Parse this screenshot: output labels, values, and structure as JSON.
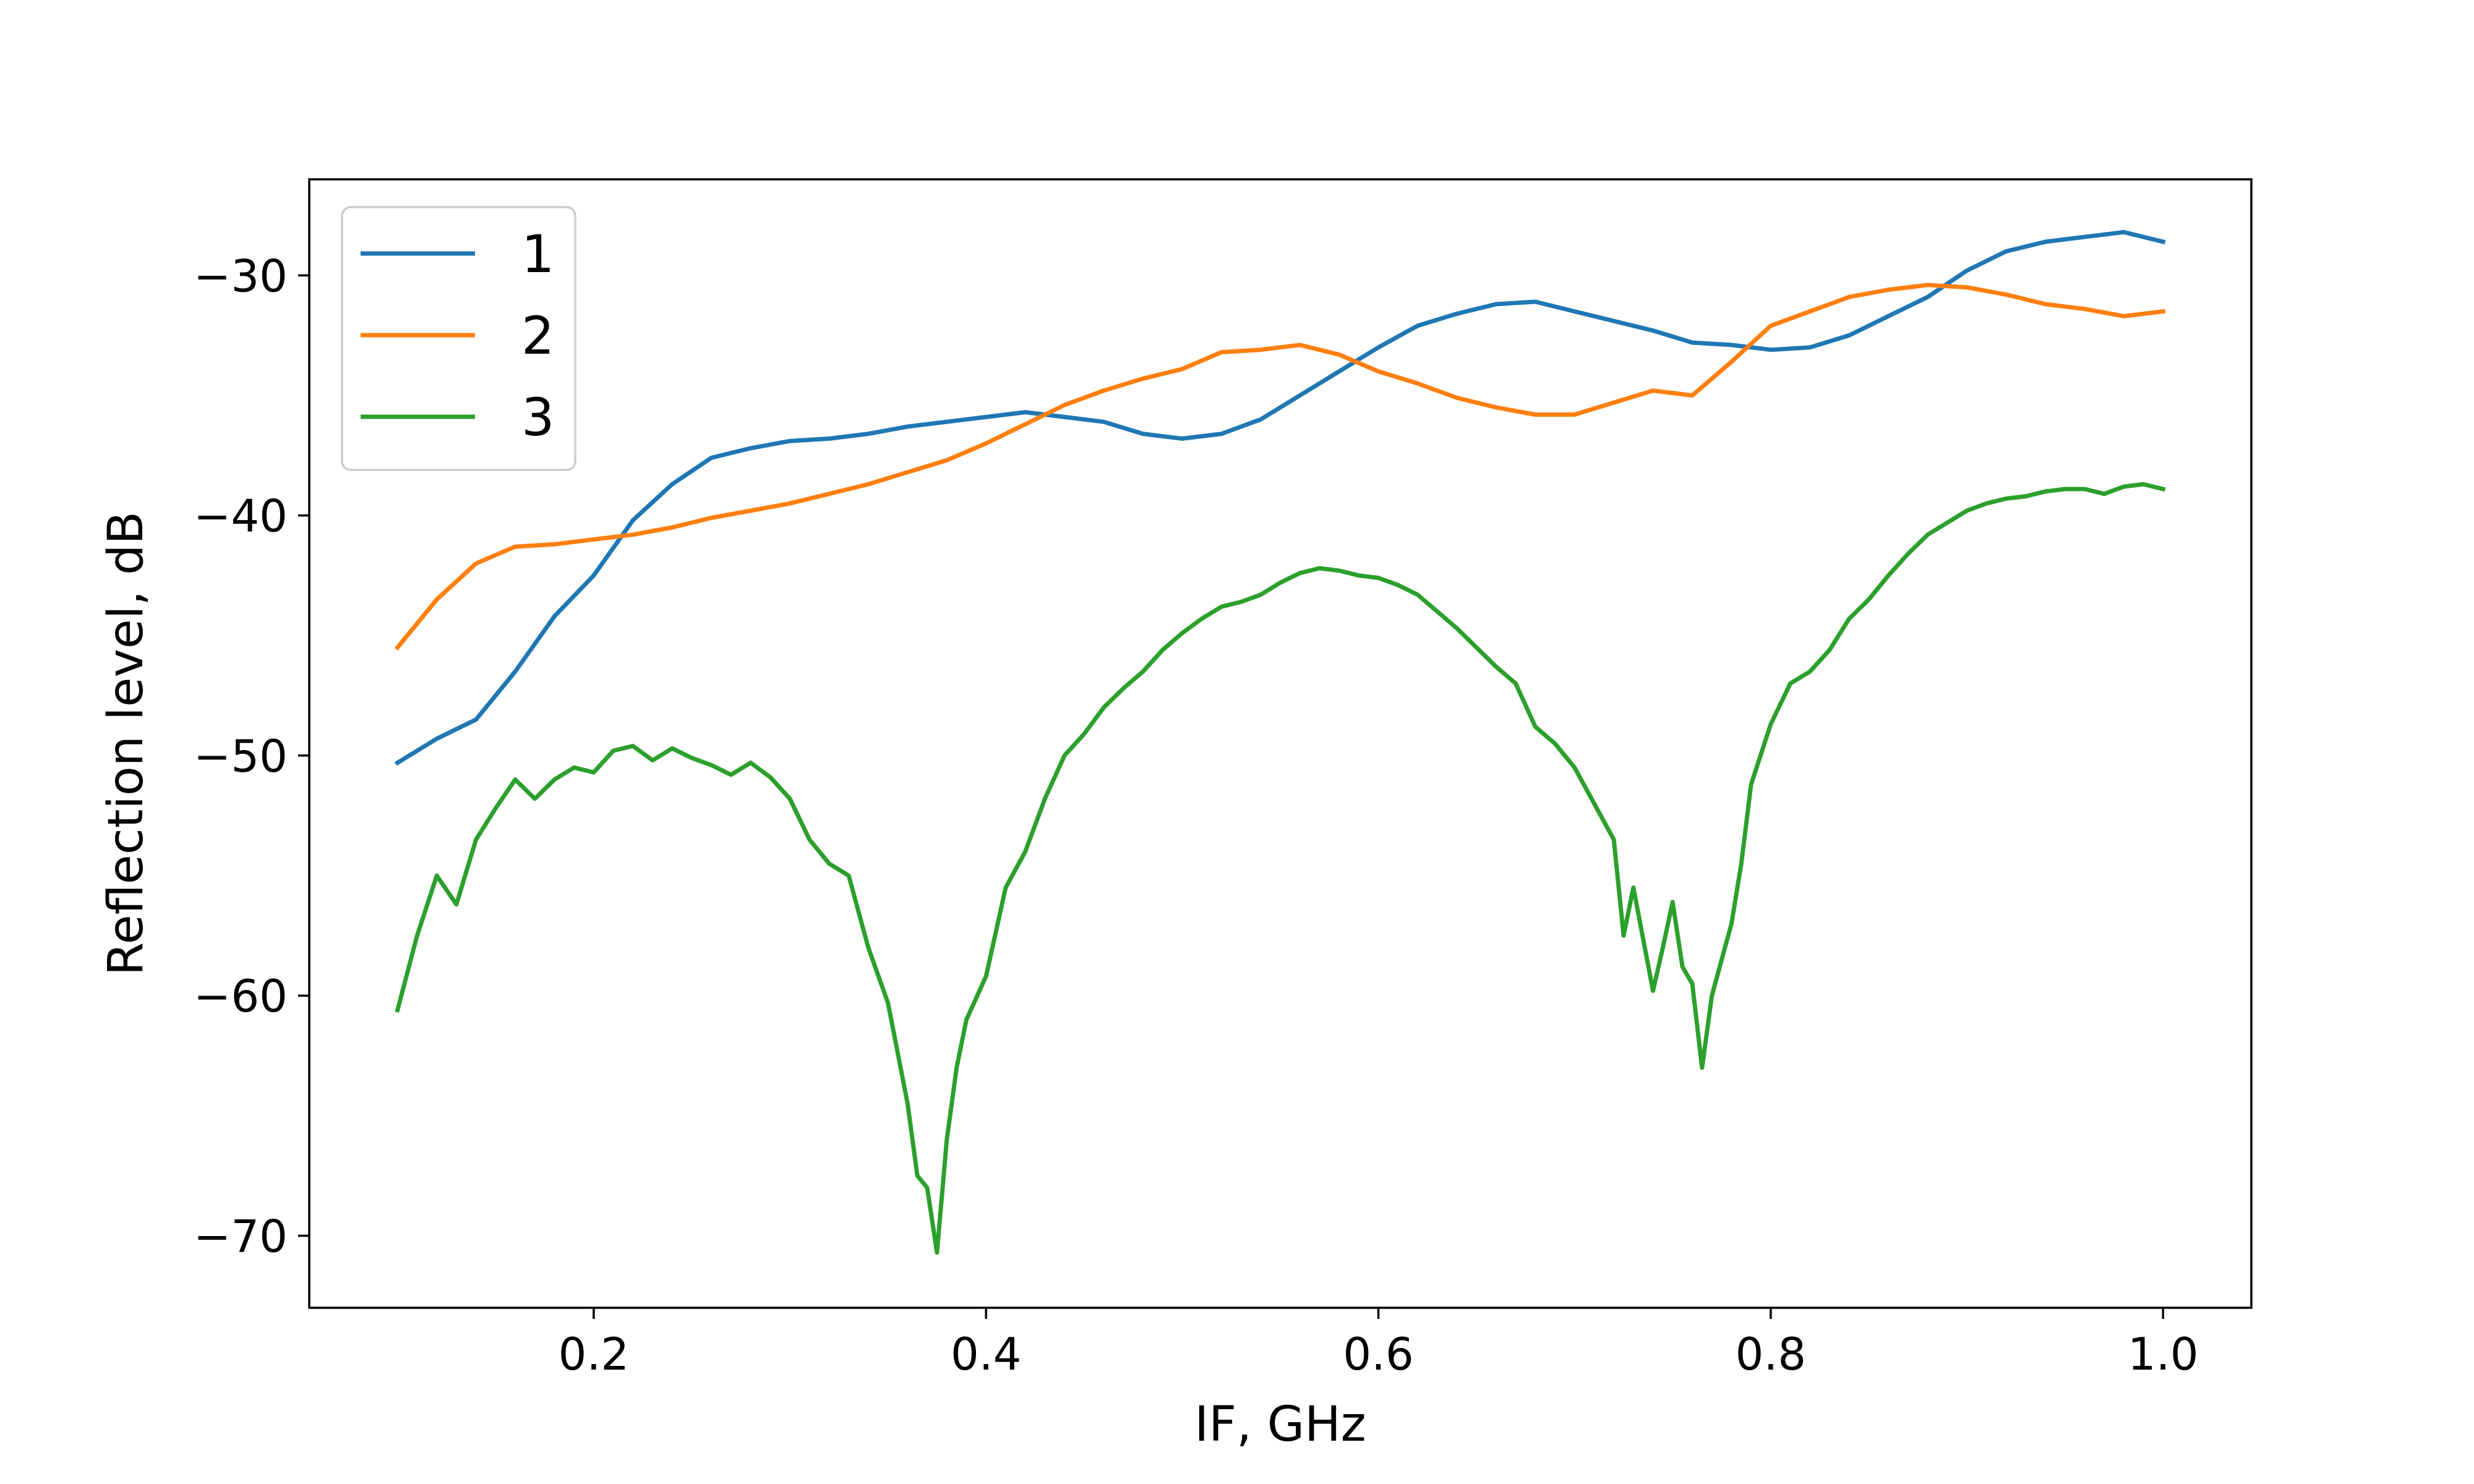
{
  "chart_data": {
    "type": "line",
    "title": "",
    "xlabel": "IF, GHz",
    "ylabel": "Reflection level, dB",
    "xlim": [
      0.055,
      1.045
    ],
    "ylim": [
      -73,
      -26
    ],
    "xticks": [
      {
        "value": 0.2,
        "label": "0.2"
      },
      {
        "value": 0.4,
        "label": "0.4"
      },
      {
        "value": 0.6,
        "label": "0.6"
      },
      {
        "value": 0.8,
        "label": "0.8"
      },
      {
        "value": 1.0,
        "label": "1.0"
      }
    ],
    "yticks": [
      {
        "value": -30,
        "label": "−30"
      },
      {
        "value": -40,
        "label": "−40"
      },
      {
        "value": -50,
        "label": "−50"
      },
      {
        "value": -60,
        "label": "−60"
      },
      {
        "value": -70,
        "label": "−70"
      }
    ],
    "grid": false,
    "legend_position": "top-left",
    "series": [
      {
        "name": "1",
        "color": "#1f77b4",
        "x": [
          0.1,
          0.12,
          0.14,
          0.16,
          0.18,
          0.2,
          0.22,
          0.24,
          0.26,
          0.28,
          0.3,
          0.32,
          0.34,
          0.36,
          0.38,
          0.4,
          0.42,
          0.44,
          0.46,
          0.48,
          0.5,
          0.52,
          0.54,
          0.56,
          0.58,
          0.6,
          0.62,
          0.64,
          0.66,
          0.68,
          0.7,
          0.72,
          0.74,
          0.76,
          0.78,
          0.8,
          0.82,
          0.84,
          0.86,
          0.88,
          0.9,
          0.92,
          0.94,
          0.96,
          0.98,
          1.0
        ],
        "y": [
          -50.3,
          -49.3,
          -48.5,
          -46.5,
          -44.2,
          -42.5,
          -40.2,
          -38.7,
          -37.6,
          -37.2,
          -36.9,
          -36.8,
          -36.6,
          -36.3,
          -36.1,
          -35.9,
          -35.7,
          -35.9,
          -36.1,
          -36.6,
          -36.8,
          -36.6,
          -36.0,
          -35.0,
          -34.0,
          -33.0,
          -32.1,
          -31.6,
          -31.2,
          -31.1,
          -31.5,
          -31.9,
          -32.3,
          -32.8,
          -32.9,
          -33.1,
          -33.0,
          -32.5,
          -31.7,
          -30.9,
          -29.8,
          -29.0,
          -28.6,
          -28.4,
          -28.2,
          -28.6
        ]
      },
      {
        "name": "2",
        "color": "#ff7f0e",
        "x": [
          0.1,
          0.12,
          0.14,
          0.16,
          0.18,
          0.2,
          0.22,
          0.24,
          0.26,
          0.28,
          0.3,
          0.32,
          0.34,
          0.36,
          0.38,
          0.4,
          0.42,
          0.44,
          0.46,
          0.48,
          0.5,
          0.52,
          0.54,
          0.56,
          0.58,
          0.6,
          0.62,
          0.64,
          0.66,
          0.68,
          0.7,
          0.72,
          0.74,
          0.76,
          0.78,
          0.8,
          0.82,
          0.84,
          0.86,
          0.88,
          0.9,
          0.92,
          0.94,
          0.96,
          0.98,
          1.0
        ],
        "y": [
          -45.5,
          -43.5,
          -42.0,
          -41.3,
          -41.2,
          -41.0,
          -40.8,
          -40.5,
          -40.1,
          -39.8,
          -39.5,
          -39.1,
          -38.7,
          -38.2,
          -37.7,
          -37.0,
          -36.2,
          -35.4,
          -34.8,
          -34.3,
          -33.9,
          -33.2,
          -33.1,
          -32.9,
          -33.3,
          -34.0,
          -34.5,
          -35.1,
          -35.5,
          -35.8,
          -35.8,
          -35.3,
          -34.8,
          -35.0,
          -33.6,
          -32.1,
          -31.5,
          -30.9,
          -30.6,
          -30.4,
          -30.5,
          -30.8,
          -31.2,
          -31.4,
          -31.7,
          -31.5
        ]
      },
      {
        "name": "3",
        "color": "#2ca02c",
        "x": [
          0.1,
          0.11,
          0.12,
          0.13,
          0.14,
          0.15,
          0.16,
          0.17,
          0.18,
          0.19,
          0.2,
          0.21,
          0.22,
          0.23,
          0.24,
          0.25,
          0.26,
          0.27,
          0.28,
          0.29,
          0.3,
          0.31,
          0.32,
          0.33,
          0.34,
          0.35,
          0.36,
          0.365,
          0.37,
          0.375,
          0.38,
          0.385,
          0.39,
          0.4,
          0.41,
          0.42,
          0.43,
          0.44,
          0.45,
          0.46,
          0.47,
          0.48,
          0.49,
          0.5,
          0.51,
          0.52,
          0.53,
          0.54,
          0.55,
          0.56,
          0.57,
          0.58,
          0.59,
          0.6,
          0.61,
          0.62,
          0.63,
          0.64,
          0.65,
          0.66,
          0.67,
          0.68,
          0.69,
          0.7,
          0.71,
          0.72,
          0.725,
          0.73,
          0.74,
          0.745,
          0.75,
          0.755,
          0.76,
          0.765,
          0.77,
          0.78,
          0.785,
          0.79,
          0.8,
          0.81,
          0.82,
          0.83,
          0.84,
          0.85,
          0.86,
          0.87,
          0.88,
          0.89,
          0.9,
          0.91,
          0.92,
          0.93,
          0.94,
          0.95,
          0.96,
          0.97,
          0.98,
          0.99,
          1.0
        ],
        "y": [
          -60.6,
          -57.5,
          -55.0,
          -56.2,
          -53.5,
          -52.2,
          -51.0,
          -51.8,
          -51.0,
          -50.5,
          -50.7,
          -49.8,
          -49.6,
          -50.2,
          -49.7,
          -50.1,
          -50.4,
          -50.8,
          -50.3,
          -50.9,
          -51.8,
          -53.5,
          -54.5,
          -55.0,
          -58.0,
          -60.3,
          -64.5,
          -67.5,
          -68.0,
          -70.7,
          -66.0,
          -63.0,
          -61.0,
          -59.2,
          -55.5,
          -54.0,
          -51.8,
          -50.0,
          -49.1,
          -48.0,
          -47.2,
          -46.5,
          -45.6,
          -44.9,
          -44.3,
          -43.8,
          -43.6,
          -43.3,
          -42.8,
          -42.4,
          -42.2,
          -42.3,
          -42.5,
          -42.6,
          -42.9,
          -43.3,
          -44.0,
          -44.7,
          -45.5,
          -46.3,
          -47.0,
          -48.8,
          -49.5,
          -50.5,
          -52.0,
          -53.5,
          -57.5,
          -55.5,
          -59.8,
          -58.0,
          -56.1,
          -58.8,
          -59.5,
          -63.0,
          -60.0,
          -57.0,
          -54.5,
          -51.2,
          -48.7,
          -47.0,
          -46.5,
          -45.6,
          -44.3,
          -43.5,
          -42.5,
          -41.6,
          -40.8,
          -40.3,
          -39.8,
          -39.5,
          -39.3,
          -39.2,
          -39.0,
          -38.9,
          -38.9,
          -39.1,
          -38.8,
          -38.7,
          -38.9
        ]
      }
    ]
  }
}
